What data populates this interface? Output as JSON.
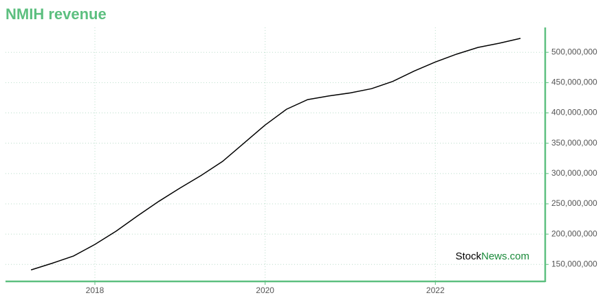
{
  "chart_data": {
    "type": "line",
    "title": "NMIH revenue",
    "watermark": {
      "prefix": "Stock",
      "suffix": "News.com"
    },
    "x": [
      2017.25,
      2017.5,
      2017.75,
      2018.0,
      2018.25,
      2018.5,
      2018.75,
      2019.0,
      2019.25,
      2019.5,
      2019.75,
      2020.0,
      2020.25,
      2020.5,
      2020.75,
      2021.0,
      2021.25,
      2021.5,
      2021.75,
      2022.0,
      2022.25,
      2022.5,
      2022.75,
      2023.0
    ],
    "series": [
      {
        "name": "NMIH revenue",
        "color": "#000000",
        "values": [
          141000000,
          152000000,
          164000000,
          183000000,
          205000000,
          230000000,
          254000000,
          276000000,
          297000000,
          320000000,
          350000000,
          380000000,
          406000000,
          422000000,
          428000000,
          433000000,
          440000000,
          452000000,
          469000000,
          484000000,
          497000000,
          508000000,
          515000000,
          523000000
        ]
      }
    ],
    "xlim": [
      2016.95,
      2023.29
    ],
    "xticks": [
      2018,
      2020,
      2022
    ],
    "ylim": [
      122000000,
      541000000
    ],
    "yticks": [
      {
        "value": 150000000,
        "label": "150,000,000"
      },
      {
        "value": 200000000,
        "label": "200,000,000"
      },
      {
        "value": 250000000,
        "label": "250,000,000"
      },
      {
        "value": 300000000,
        "label": "300,000,000"
      },
      {
        "value": 350000000,
        "label": "350,000,000"
      },
      {
        "value": 400000000,
        "label": "400,000,000"
      },
      {
        "value": 450000000,
        "label": "450,000,000"
      },
      {
        "value": 500000000,
        "label": "500,000,000"
      }
    ],
    "grid": true,
    "axis_color": "#5cbf7f"
  }
}
